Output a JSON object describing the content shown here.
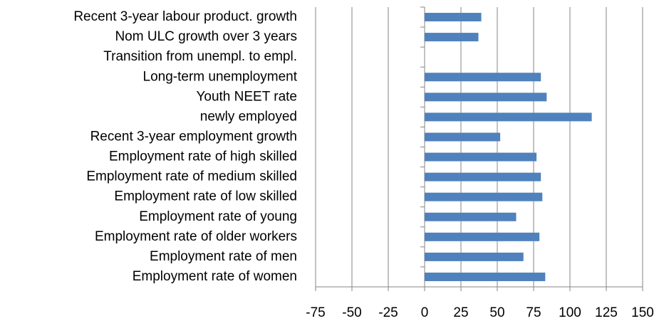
{
  "chart_data": {
    "type": "barh",
    "categories": [
      "Recent 3-year labour product. growth",
      "Nom ULC growth over 3 years",
      "Transition from unempl. to empl.",
      "Long-term unemployment ",
      "Youth NEET rate",
      "newly employed",
      "Recent 3-year employment growth",
      "Employment rate of high skilled",
      "Employment rate of medium skilled",
      "Employment rate of low skilled",
      "Employment rate of young",
      "Employment rate of older workers",
      "Employment rate of men",
      "Employment rate of women"
    ],
    "values": [
      39,
      37,
      null,
      80,
      84,
      115,
      52,
      77,
      80,
      81,
      63,
      79,
      68,
      83
    ],
    "color": "#4f81bd",
    "xlim": [
      -75,
      150
    ],
    "xticks": [
      -75,
      -50,
      -25,
      0,
      25,
      50,
      75,
      100,
      125,
      150
    ],
    "grid": true
  }
}
